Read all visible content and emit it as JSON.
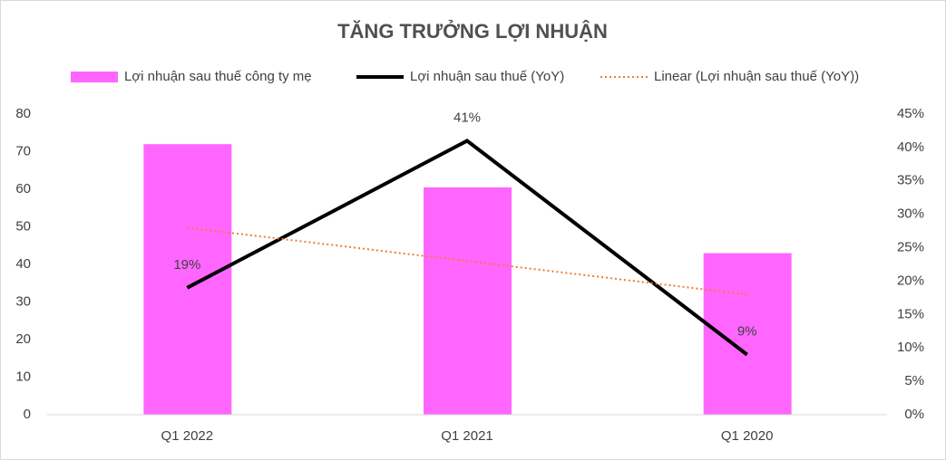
{
  "chart_data": {
    "type": "combo",
    "title": "TĂNG TRƯỞNG LỢI NHUẬN",
    "categories": [
      "Q1 2022",
      "Q1 2021",
      "Q1 2020"
    ],
    "series": [
      {
        "name": "Lợi nhuận sau thuế công ty mẹ",
        "type": "bar",
        "color": "#ff66ff",
        "values": [
          72,
          60.5,
          43
        ]
      },
      {
        "name": "Lợi nhuận sau thuế (YoY)",
        "type": "line",
        "axis": "y2",
        "color": "#000000",
        "values": [
          19,
          41,
          9
        ],
        "value_labels": [
          "19%",
          "41%",
          "9%"
        ]
      },
      {
        "name": "Linear (Lợi nhuận sau thuế (YoY))",
        "type": "line",
        "axis": "y2",
        "dash": "dotted",
        "color": "#ed7d31",
        "values": [
          28,
          23,
          18
        ]
      }
    ],
    "ylim": [
      0,
      80
    ],
    "yticks": [
      0,
      10,
      20,
      30,
      40,
      50,
      60,
      70,
      80
    ],
    "y2lim": [
      0,
      45
    ],
    "y2ticks": [
      {
        "value": 0,
        "label": "0%"
      },
      {
        "value": 5,
        "label": "5%"
      },
      {
        "value": 10,
        "label": "10%"
      },
      {
        "value": 15,
        "label": "15%"
      },
      {
        "value": 20,
        "label": "20%"
      },
      {
        "value": 25,
        "label": "25%"
      },
      {
        "value": 30,
        "label": "30%"
      },
      {
        "value": 35,
        "label": "35%"
      },
      {
        "value": 40,
        "label": "40%"
      },
      {
        "value": 45,
        "label": "45%"
      }
    ],
    "legend": "top",
    "grid": false
  }
}
